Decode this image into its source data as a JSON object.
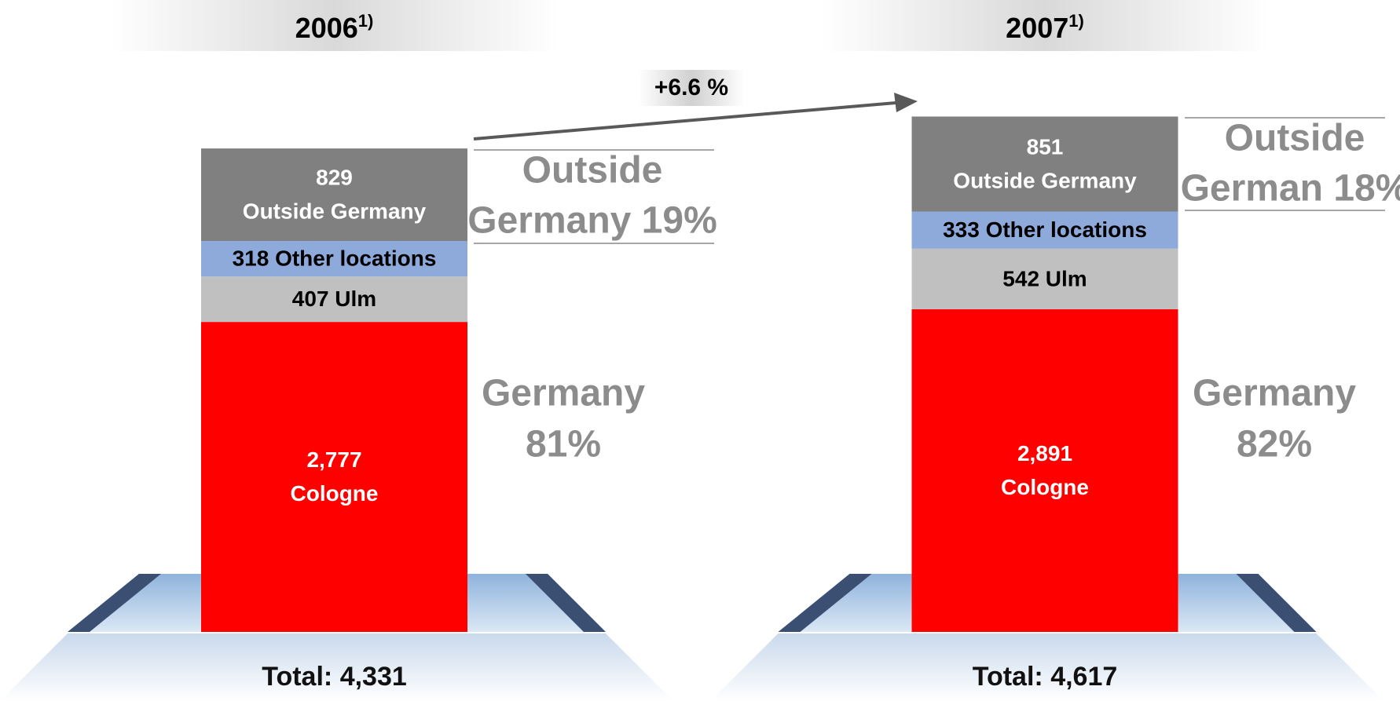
{
  "chart_data": {
    "type": "stacked-bar",
    "categories": [
      "2006",
      "2007"
    ],
    "footnote_marker": "1)",
    "series": [
      {
        "name": "Cologne",
        "color": "#ff0000",
        "text_color": "#ffffff",
        "values": [
          2777,
          2891
        ],
        "value_labels": [
          "2,777",
          "2,891"
        ]
      },
      {
        "name": "Ulm",
        "color": "#c0c0c0",
        "text_color": "#000000",
        "values": [
          407,
          542
        ]
      },
      {
        "name": "Other locations",
        "color": "#8eaadb",
        "text_color": "#000000",
        "values": [
          318,
          333
        ]
      },
      {
        "name": "Outside Germany",
        "color": "#808080",
        "text_color": "#ffffff",
        "values": [
          829,
          851
        ]
      }
    ],
    "total_label": "Total:",
    "totals": [
      {
        "value": 4331,
        "label": "4,331"
      },
      {
        "value": 4617,
        "label": "4,617"
      }
    ],
    "growth_label": "+6.6 %",
    "share_labels": [
      {
        "outside": [
          "Outside",
          "Germany 19%"
        ],
        "germany": [
          "Germany",
          "81%"
        ]
      },
      {
        "outside": [
          "Outside",
          "German 18%"
        ],
        "germany": [
          "Germany",
          "82%"
        ]
      }
    ]
  }
}
